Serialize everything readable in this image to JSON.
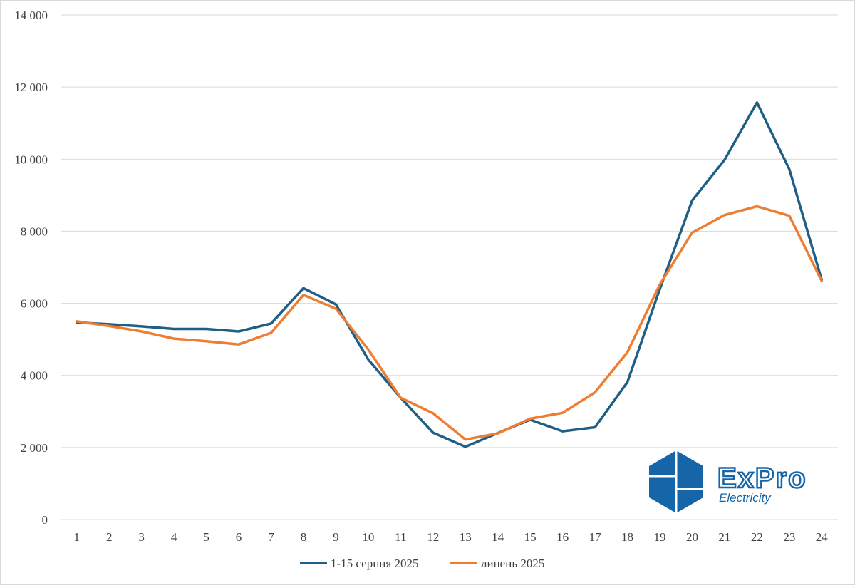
{
  "colors": {
    "series1": "#1f5f86",
    "series2": "#ed7d31",
    "grid": "#d9d9d9",
    "logo_blue": "#1565a8"
  },
  "logo": {
    "name": "ExPro",
    "tagline": "Electricity"
  },
  "chart_data": {
    "type": "line",
    "title": "",
    "xlabel": "",
    "ylabel": "",
    "ylim": [
      0,
      14000
    ],
    "yticks": [
      0,
      2000,
      4000,
      6000,
      8000,
      10000,
      12000,
      14000
    ],
    "ytick_labels": [
      "0",
      "2 000",
      "4 000",
      "6 000",
      "8 000",
      "10 000",
      "12 000",
      "14 000"
    ],
    "grid": true,
    "legend_position": "bottom",
    "categories": [
      "1",
      "2",
      "3",
      "4",
      "5",
      "6",
      "7",
      "8",
      "9",
      "10",
      "11",
      "12",
      "13",
      "14",
      "15",
      "16",
      "17",
      "18",
      "19",
      "20",
      "21",
      "22",
      "23",
      "24"
    ],
    "series": [
      {
        "name": "1-15 серпня 2025",
        "color": "#1f5f86",
        "values": [
          5470,
          5420,
          5360,
          5290,
          5290,
          5220,
          5440,
          6420,
          5970,
          4440,
          3380,
          2410,
          2020,
          2400,
          2770,
          2450,
          2560,
          3810,
          6390,
          8850,
          9980,
          11570,
          9720,
          6650
        ]
      },
      {
        "name": "липень 2025",
        "color": "#ed7d31",
        "values": [
          5500,
          5370,
          5220,
          5020,
          4950,
          4860,
          5180,
          6230,
          5850,
          4720,
          3380,
          2950,
          2220,
          2390,
          2800,
          2960,
          3530,
          4640,
          6520,
          7960,
          8450,
          8690,
          8430,
          6620
        ]
      }
    ]
  }
}
